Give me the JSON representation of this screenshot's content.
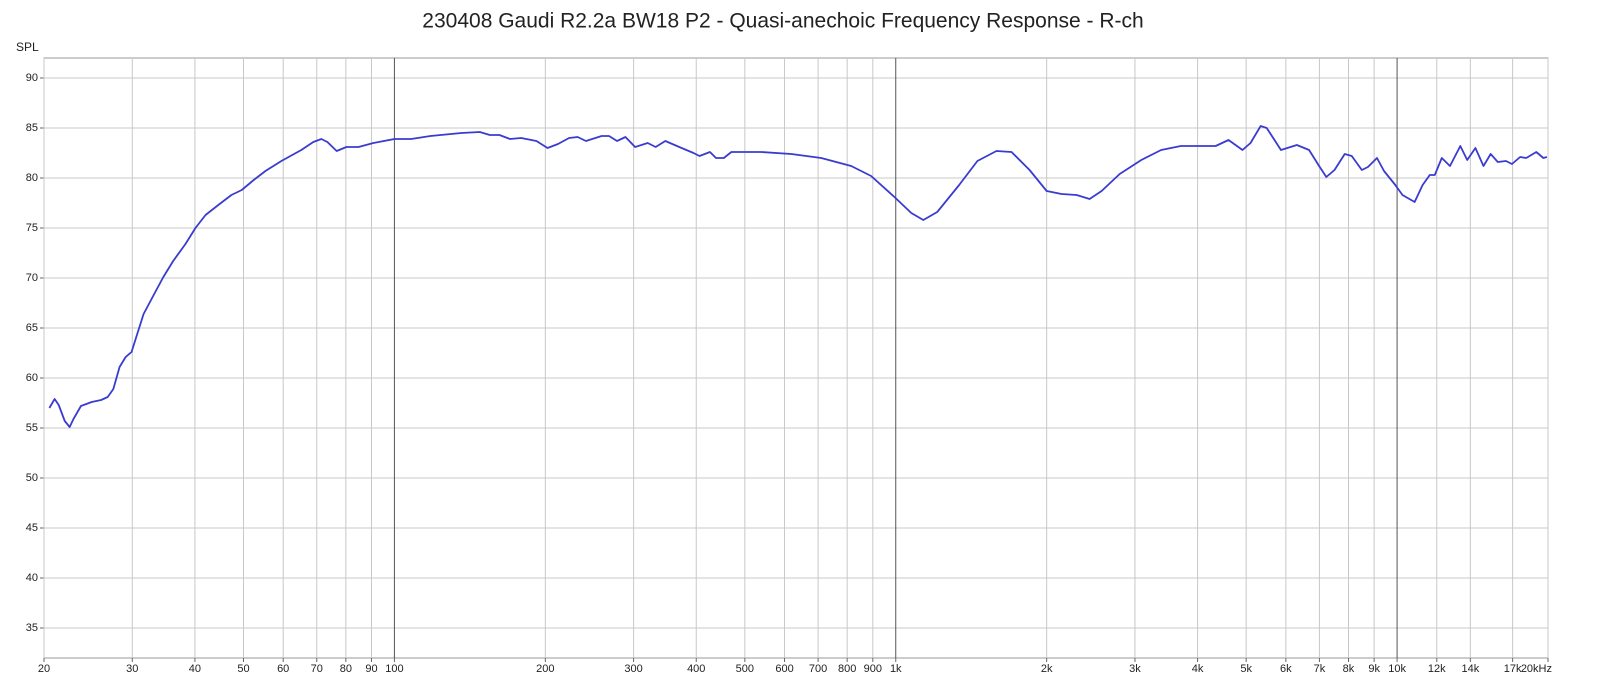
{
  "chart_data": {
    "type": "line",
    "title": "230408 Gaudi R2.2a BW18 P2 - Quasi-anechoic Frequency Response - R-ch",
    "y_label": "SPL",
    "x_scale": "log",
    "grid": true,
    "xlim": [
      20,
      20000
    ],
    "ylim": [
      32,
      92
    ],
    "yticks": [
      35,
      40,
      45,
      50,
      55,
      60,
      65,
      70,
      75,
      80,
      85,
      90
    ],
    "xticks": [
      20,
      30,
      40,
      50,
      60,
      70,
      80,
      90,
      100,
      200,
      300,
      400,
      500,
      600,
      700,
      800,
      900,
      {
        "value": 1000,
        "label": "1k"
      },
      {
        "value": 2000,
        "label": "2k"
      },
      {
        "value": 3000,
        "label": "3k"
      },
      {
        "value": 4000,
        "label": "4k"
      },
      {
        "value": 5000,
        "label": "5k"
      },
      {
        "value": 6000,
        "label": "6k"
      },
      {
        "value": 7000,
        "label": "7k"
      },
      {
        "value": 8000,
        "label": "8k"
      },
      {
        "value": 9000,
        "label": "9k"
      },
      {
        "value": 10000,
        "label": "10k"
      },
      {
        "value": 12000,
        "label": "12k"
      },
      {
        "value": 14000,
        "label": "14k"
      },
      {
        "value": 17000,
        "label": "17k"
      },
      {
        "value": 20000,
        "label": "20kHz"
      }
    ],
    "x": [
      20.5,
      21.0,
      21.4,
      22.0,
      22.5,
      22.9,
      23.7,
      24.9,
      26.0,
      26.8,
      27.5,
      28.3,
      29.1,
      29.9,
      30.6,
      31.6,
      33.1,
      34.6,
      36.2,
      38.3,
      40.1,
      42.0,
      44.8,
      47.3,
      49.6,
      52.4,
      55.3,
      59.5,
      65.2,
      68.9,
      71.5,
      73.5,
      76.7,
      80.2,
      84.8,
      90.8,
      100,
      108,
      118,
      136,
      148,
      155,
      162,
      170,
      179,
      192,
      202,
      212,
      223,
      232,
      241,
      259,
      268,
      278,
      289,
      302,
      320,
      332,
      347,
      374,
      395,
      406,
      426,
      438,
      454,
      470,
      539,
      619,
      710,
      815,
      893,
      994,
      1074,
      1135,
      1210,
      1338,
      1455,
      1588,
      1702,
      1849,
      2000,
      2141,
      2295,
      2436,
      2574,
      2797,
      3089,
      3383,
      3705,
      4056,
      4346,
      4611,
      4917,
      5101,
      5344,
      5495,
      5866,
      6311,
      6675,
      6990,
      7225,
      7502,
      7863,
      8120,
      8505,
      8746,
      9118,
      9418,
      9918,
      10250,
      10840,
      11245,
      11620,
      11890,
      12280,
      12750,
      13370,
      13800,
      14330,
      14870,
      15370,
      15880,
      16490,
      16950,
      17600,
      18100,
      18950,
      19580,
      19900
    ],
    "series": [
      {
        "name": "R-ch",
        "color": "#3a3ccf",
        "values": [
          57.0,
          57.9,
          57.3,
          55.7,
          55.1,
          55.9,
          57.2,
          57.6,
          57.8,
          58.1,
          58.9,
          61.1,
          62.1,
          62.6,
          64.2,
          66.4,
          68.3,
          70.1,
          71.7,
          73.4,
          75.0,
          76.3,
          77.4,
          78.3,
          78.8,
          79.8,
          80.7,
          81.7,
          82.8,
          83.6,
          83.9,
          83.6,
          82.7,
          83.1,
          83.1,
          83.5,
          83.9,
          83.9,
          84.2,
          84.5,
          84.6,
          84.3,
          84.3,
          83.9,
          84.0,
          83.7,
          83.0,
          83.4,
          84.0,
          84.1,
          83.7,
          84.2,
          84.2,
          83.7,
          84.1,
          83.1,
          83.5,
          83.1,
          83.7,
          83.0,
          82.5,
          82.2,
          82.6,
          82.0,
          82.0,
          82.6,
          82.6,
          82.4,
          82.0,
          81.2,
          80.2,
          78.1,
          76.5,
          75.8,
          76.6,
          79.3,
          81.7,
          82.7,
          82.6,
          80.8,
          78.7,
          78.4,
          78.3,
          77.9,
          78.7,
          80.4,
          81.8,
          82.8,
          83.2,
          83.2,
          83.2,
          83.8,
          82.8,
          83.5,
          85.2,
          85.0,
          82.8,
          83.3,
          82.8,
          81.2,
          80.1,
          80.8,
          82.4,
          82.2,
          80.8,
          81.1,
          82.0,
          80.7,
          79.3,
          78.3,
          77.6,
          79.3,
          80.3,
          80.3,
          82.0,
          81.2,
          83.2,
          81.8,
          83.0,
          81.2,
          82.4,
          81.6,
          81.7,
          81.4,
          82.1,
          82.0,
          82.6,
          82.0,
          82.1
        ]
      }
    ]
  }
}
